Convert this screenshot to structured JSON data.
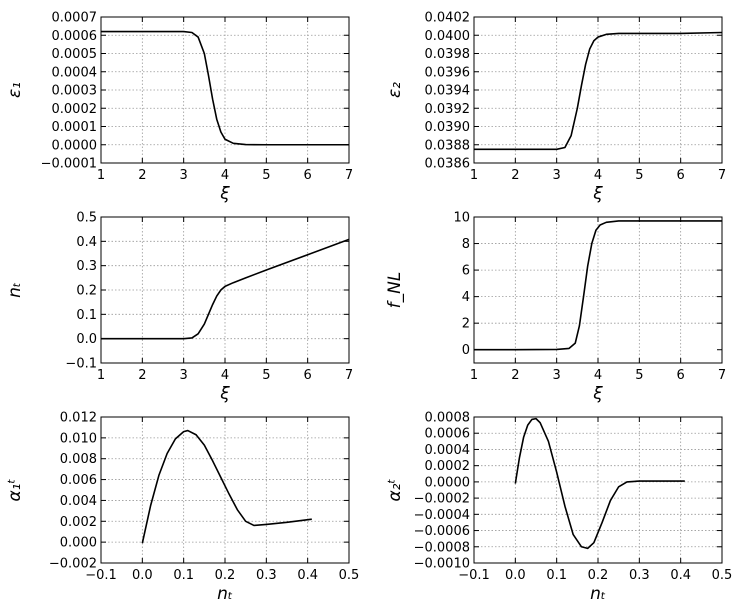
{
  "chart_data": [
    {
      "id": "eps1",
      "type": "line",
      "xlabel": "ξ",
      "ylabel": "ε₁",
      "xlim": [
        1,
        7
      ],
      "ylim": [
        -0.0001,
        0.0007
      ],
      "xticks": [
        1,
        2,
        3,
        4,
        5,
        6,
        7
      ],
      "xtick_labels": [
        "1",
        "2",
        "3",
        "4",
        "5",
        "6",
        "7"
      ],
      "yticks": [
        -0.0001,
        0.0,
        0.0001,
        0.0002,
        0.0003,
        0.0004,
        0.0005,
        0.0006,
        0.0007
      ],
      "ytick_labels": [
        "−0.0001",
        "0.0000",
        "0.0001",
        "0.0002",
        "0.0003",
        "0.0004",
        "0.0005",
        "0.0006",
        "0.0007"
      ],
      "grid": true,
      "series": [
        {
          "x": [
            1.0,
            2.0,
            3.0,
            3.2,
            3.35,
            3.5,
            3.6,
            3.7,
            3.8,
            3.9,
            4.0,
            4.2,
            4.5,
            5.0,
            6.0,
            7.0
          ],
          "y": [
            0.00062,
            0.00062,
            0.00062,
            0.000615,
            0.00059,
            0.0005,
            0.00038,
            0.00025,
            0.00014,
            7e-05,
            3e-05,
            8e-06,
            1e-06,
            0.0,
            0.0,
            0.0
          ]
        }
      ]
    },
    {
      "id": "eps2",
      "type": "line",
      "xlabel": "ξ",
      "ylabel": "ε₂",
      "xlim": [
        1,
        7
      ],
      "ylim": [
        0.0386,
        0.0402
      ],
      "xticks": [
        1,
        2,
        3,
        4,
        5,
        6,
        7
      ],
      "xtick_labels": [
        "1",
        "2",
        "3",
        "4",
        "5",
        "6",
        "7"
      ],
      "yticks": [
        0.0386,
        0.0388,
        0.039,
        0.0392,
        0.0394,
        0.0396,
        0.0398,
        0.04,
        0.0402
      ],
      "ytick_labels": [
        "0.0386",
        "0.0388",
        "0.0390",
        "0.0392",
        "0.0394",
        "0.0396",
        "0.0398",
        "0.0400",
        "0.0402"
      ],
      "grid": true,
      "series": [
        {
          "x": [
            1.0,
            2.0,
            3.0,
            3.2,
            3.35,
            3.5,
            3.6,
            3.7,
            3.8,
            3.9,
            4.0,
            4.2,
            4.5,
            5.0,
            6.0,
            7.0
          ],
          "y": [
            0.03875,
            0.03875,
            0.03875,
            0.03877,
            0.0389,
            0.0392,
            0.03945,
            0.03968,
            0.03985,
            0.03994,
            0.03998,
            0.04001,
            0.04002,
            0.04002,
            0.04002,
            0.04003
          ]
        }
      ]
    },
    {
      "id": "nt",
      "type": "line",
      "xlabel": "ξ",
      "ylabel": "nₜ",
      "xlim": [
        1,
        7
      ],
      "ylim": [
        -0.1,
        0.5
      ],
      "xticks": [
        1,
        2,
        3,
        4,
        5,
        6,
        7
      ],
      "xtick_labels": [
        "1",
        "2",
        "3",
        "4",
        "5",
        "6",
        "7"
      ],
      "yticks": [
        -0.1,
        0.0,
        0.1,
        0.2,
        0.3,
        0.4,
        0.5
      ],
      "ytick_labels": [
        "−0.1",
        "0.0",
        "0.1",
        "0.2",
        "0.3",
        "0.4",
        "0.5"
      ],
      "grid": true,
      "series": [
        {
          "x": [
            1.0,
            2.0,
            3.0,
            3.2,
            3.35,
            3.5,
            3.6,
            3.7,
            3.8,
            3.9,
            4.0,
            4.2,
            4.5,
            5.0,
            6.0,
            7.0
          ],
          "y": [
            0.0,
            0.0,
            0.0,
            0.003,
            0.02,
            0.06,
            0.1,
            0.14,
            0.175,
            0.2,
            0.215,
            0.23,
            0.25,
            0.282,
            0.345,
            0.408
          ]
        }
      ]
    },
    {
      "id": "fnl",
      "type": "line",
      "xlabel": "ξ",
      "ylabel": "f_NL",
      "xlim": [
        1,
        7
      ],
      "ylim": [
        -1,
        10
      ],
      "xticks": [
        1,
        2,
        3,
        4,
        5,
        6,
        7
      ],
      "xtick_labels": [
        "1",
        "2",
        "3",
        "4",
        "5",
        "6",
        "7"
      ],
      "yticks": [
        0,
        2,
        4,
        6,
        8,
        10
      ],
      "ytick_labels": [
        "0",
        "2",
        "4",
        "6",
        "8",
        "10"
      ],
      "grid": true,
      "series": [
        {
          "x": [
            1.0,
            2.0,
            3.0,
            3.3,
            3.45,
            3.55,
            3.65,
            3.75,
            3.85,
            3.95,
            4.05,
            4.2,
            4.5,
            5.0,
            6.0,
            7.0
          ],
          "y": [
            0.0,
            0.0,
            0.02,
            0.1,
            0.5,
            1.8,
            4.0,
            6.3,
            8.0,
            9.0,
            9.4,
            9.6,
            9.7,
            9.7,
            9.7,
            9.7
          ]
        }
      ]
    },
    {
      "id": "alpha1",
      "type": "line",
      "xlabel": "nₜ",
      "ylabel": "α₁ᵗ",
      "xlim": [
        -0.1,
        0.5
      ],
      "ylim": [
        -0.002,
        0.012
      ],
      "xticks": [
        -0.1,
        0.0,
        0.1,
        0.2,
        0.3,
        0.4,
        0.5
      ],
      "xtick_labels": [
        "−0.1",
        "0.0",
        "0.1",
        "0.2",
        "0.3",
        "0.4",
        "0.5"
      ],
      "yticks": [
        -0.002,
        0.0,
        0.002,
        0.004,
        0.006,
        0.008,
        0.01,
        0.012
      ],
      "ytick_labels": [
        "−0.002",
        "0.000",
        "0.002",
        "0.004",
        "0.006",
        "0.008",
        "0.010",
        "0.012"
      ],
      "grid": true,
      "series": [
        {
          "x": [
            0.0,
            0.02,
            0.04,
            0.06,
            0.08,
            0.1,
            0.11,
            0.13,
            0.15,
            0.17,
            0.19,
            0.21,
            0.23,
            0.25,
            0.27,
            0.3,
            0.35,
            0.41
          ],
          "y": [
            -0.0001,
            0.0035,
            0.0064,
            0.0085,
            0.0099,
            0.0106,
            0.0107,
            0.0103,
            0.0093,
            0.0078,
            0.0062,
            0.0046,
            0.0031,
            0.002,
            0.0016,
            0.0017,
            0.0019,
            0.0022
          ]
        }
      ]
    },
    {
      "id": "alpha2",
      "type": "line",
      "xlabel": "nₜ",
      "ylabel": "α₂ᵗ",
      "xlim": [
        -0.1,
        0.5
      ],
      "ylim": [
        -0.001,
        0.0008
      ],
      "xticks": [
        -0.1,
        0.0,
        0.1,
        0.2,
        0.3,
        0.4,
        0.5
      ],
      "xtick_labels": [
        "−0.1",
        "0.0",
        "0.1",
        "0.2",
        "0.3",
        "0.4",
        "0.5"
      ],
      "yticks": [
        -0.001,
        -0.0008,
        -0.0006,
        -0.0004,
        -0.0002,
        0.0,
        0.0002,
        0.0004,
        0.0006,
        0.0008
      ],
      "ytick_labels": [
        "−0.0010",
        "−0.0008",
        "−0.0006",
        "−0.0004",
        "−0.0002",
        "0.0000",
        "0.0002",
        "0.0004",
        "0.0006",
        "0.0008"
      ],
      "grid": true,
      "series": [
        {
          "x": [
            0.0,
            0.01,
            0.02,
            0.03,
            0.04,
            0.05,
            0.06,
            0.08,
            0.1,
            0.12,
            0.14,
            0.16,
            0.175,
            0.19,
            0.21,
            0.23,
            0.25,
            0.27,
            0.3,
            0.35,
            0.41
          ],
          "y": [
            -2e-05,
            0.0003,
            0.00055,
            0.0007,
            0.00077,
            0.00078,
            0.00073,
            0.0005,
            0.00012,
            -0.0003,
            -0.00065,
            -0.0008,
            -0.00082,
            -0.00075,
            -0.0005,
            -0.00023,
            -6e-05,
            0.0,
            1e-05,
            1e-05,
            1e-05
          ]
        }
      ]
    }
  ]
}
